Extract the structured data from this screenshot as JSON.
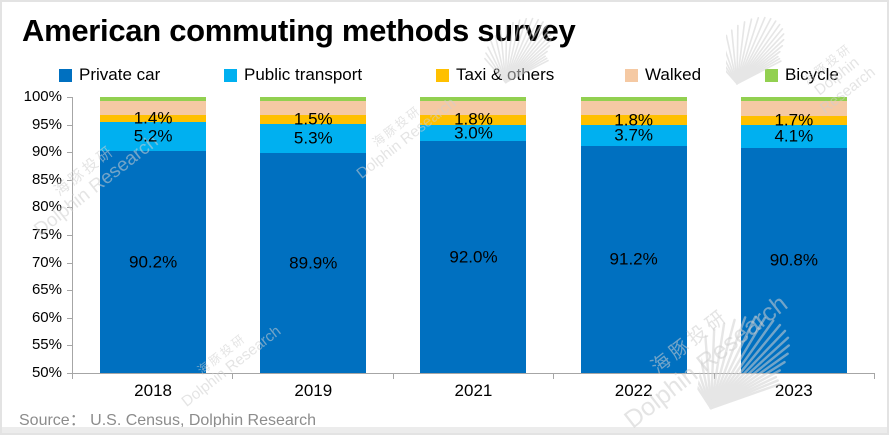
{
  "title": "American commuting methods survey",
  "source_note": "Source：  U.S. Census, Dolphin Research",
  "watermark": {
    "line1": "海豚投研",
    "line2": "Dolphin Research"
  },
  "chart_data": {
    "type": "bar",
    "stacked": true,
    "title": "American commuting methods survey",
    "categories": [
      "2018",
      "2019",
      "2021",
      "2022",
      "2023"
    ],
    "series": [
      {
        "name": "Private car",
        "color": "#0070C0",
        "values": [
          90.2,
          89.9,
          92.0,
          91.2,
          90.8
        ],
        "labels": [
          "90.2%",
          "89.9%",
          "92.0%",
          "91.2%",
          "90.8%"
        ]
      },
      {
        "name": "Public transport",
        "color": "#00B0F0",
        "values": [
          5.2,
          5.3,
          3.0,
          3.7,
          4.1
        ],
        "labels": [
          "5.2%",
          "5.3%",
          "3.0%",
          "3.7%",
          "4.1%"
        ]
      },
      {
        "name": "Taxi & others",
        "color": "#FFC000",
        "values": [
          1.4,
          1.5,
          1.8,
          1.8,
          1.7
        ],
        "labels": [
          "1.4%",
          "1.5%",
          "1.8%",
          "1.8%",
          "1.7%"
        ]
      },
      {
        "name": "Walked",
        "color": "#F5C9A3",
        "values": [
          2.5,
          2.6,
          2.5,
          2.6,
          2.7
        ],
        "labels": [
          "",
          "",
          "",
          "",
          ""
        ]
      },
      {
        "name": "Bicycle",
        "color": "#92D050",
        "values": [
          0.7,
          0.7,
          0.7,
          0.7,
          0.7
        ],
        "labels": [
          "",
          "",
          "",
          "",
          ""
        ]
      }
    ],
    "ylim": [
      50,
      100
    ],
    "yticks": [
      "100%",
      "95%",
      "90%",
      "85%",
      "80%",
      "75%",
      "70%",
      "65%",
      "60%",
      "55%",
      "50%"
    ],
    "grid": false,
    "legend_position": "top"
  }
}
